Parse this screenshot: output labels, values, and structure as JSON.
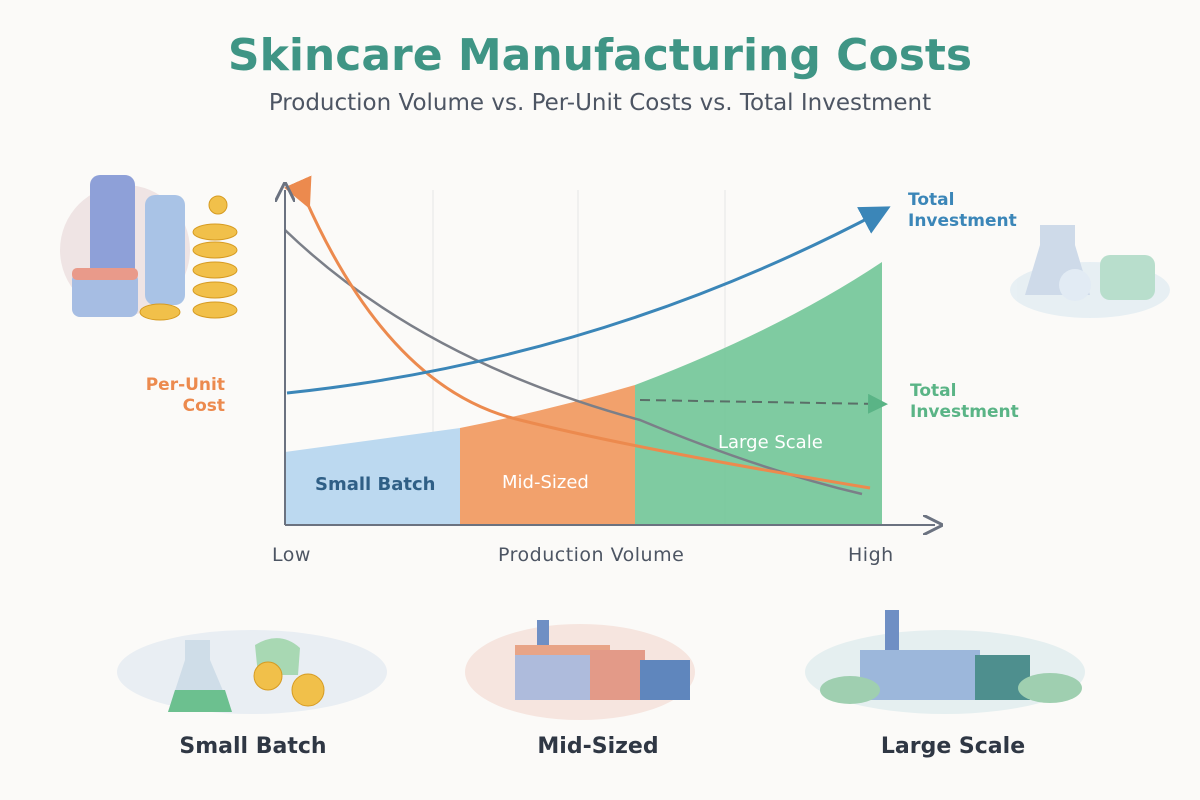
{
  "header": {
    "title": "Skincare Manufacturing Costs",
    "subtitle": "Production Volume vs. Per-Unit Costs vs. Total Investment"
  },
  "chart": {
    "curve_labels": [
      "Total Investment",
      "Per-Unit Cost",
      "Total Investment"
    ],
    "zones": [
      "Small Batch",
      "Mid-Sized",
      "Large Scale"
    ],
    "x_axis": {
      "low": "Low",
      "label": "Production Volume",
      "high": "High"
    }
  },
  "captions": [
    "Small Batch",
    "Mid-Sized",
    "Large Scale"
  ]
}
